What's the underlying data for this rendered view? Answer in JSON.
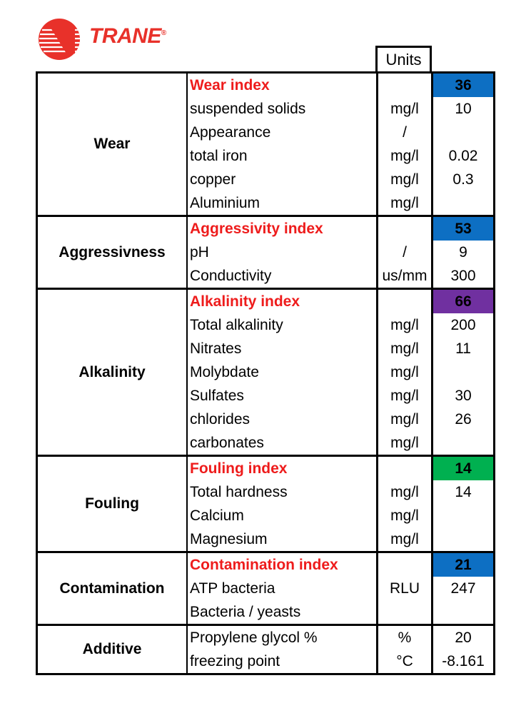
{
  "logo": {
    "text": "TRANE",
    "mark": "®"
  },
  "colors": {
    "brand_red": "#e8312a",
    "index_red": "#ee1c1c",
    "blue": "#0d6fc3",
    "purple": "#7030a0",
    "green": "#00b050"
  },
  "header": {
    "units": "Units"
  },
  "sections": [
    {
      "category": "Wear",
      "rows": [
        {
          "desc": "Wear index",
          "unit": "",
          "value": "36",
          "index": true,
          "color": "#0d6fc3"
        },
        {
          "desc": "suspended solids",
          "unit": "mg/l",
          "value": "10"
        },
        {
          "desc": "Appearance",
          "unit": "/",
          "value": ""
        },
        {
          "desc": "total iron",
          "unit": "mg/l",
          "value": "0.02"
        },
        {
          "desc": "copper",
          "unit": "mg/l",
          "value": "0.3"
        },
        {
          "desc": "Aluminium",
          "unit": "mg/l",
          "value": ""
        }
      ]
    },
    {
      "category": "Aggressivness",
      "rows": [
        {
          "desc": "Aggressivity index",
          "unit": "",
          "value": "53",
          "index": true,
          "color": "#0d6fc3"
        },
        {
          "desc": "pH",
          "unit": "/",
          "value": "9"
        },
        {
          "desc": "Conductivity",
          "unit": "us/mm",
          "value": "300"
        }
      ]
    },
    {
      "category": "Alkalinity",
      "rows": [
        {
          "desc": "Alkalinity index",
          "unit": "",
          "value": "66",
          "index": true,
          "color": "#7030a0"
        },
        {
          "desc": "Total alkalinity",
          "unit": "mg/l",
          "value": "200"
        },
        {
          "desc": "Nitrates",
          "unit": "mg/l",
          "value": "11"
        },
        {
          "desc": "Molybdate",
          "unit": "mg/l",
          "value": ""
        },
        {
          "desc": "Sulfates",
          "unit": "mg/l",
          "value": "30"
        },
        {
          "desc": "chlorides",
          "unit": "mg/l",
          "value": "26"
        },
        {
          "desc": "carbonates",
          "unit": "mg/l",
          "value": ""
        }
      ]
    },
    {
      "category": "Fouling",
      "rows": [
        {
          "desc": "Fouling index",
          "unit": "",
          "value": "14",
          "index": true,
          "color": "#00b050"
        },
        {
          "desc": "Total hardness",
          "unit": "mg/l",
          "value": "14"
        },
        {
          "desc": "Calcium",
          "unit": "mg/l",
          "value": ""
        },
        {
          "desc": "Magnesium",
          "unit": "mg/l",
          "value": ""
        }
      ]
    },
    {
      "category": "Contamination",
      "rows": [
        {
          "desc": "Contamination index",
          "unit": "",
          "value": "21",
          "index": true,
          "color": "#0d6fc3"
        },
        {
          "desc": "ATP bacteria",
          "unit": "RLU",
          "value": "247"
        },
        {
          "desc": "Bacteria / yeasts",
          "unit": "",
          "value": ""
        }
      ]
    },
    {
      "category": "Additive",
      "rows": [
        {
          "desc": "Propylene glycol %",
          "unit": "%",
          "value": "20"
        },
        {
          "desc": "freezing point",
          "unit": "°C",
          "value": "-8.161"
        }
      ]
    }
  ]
}
